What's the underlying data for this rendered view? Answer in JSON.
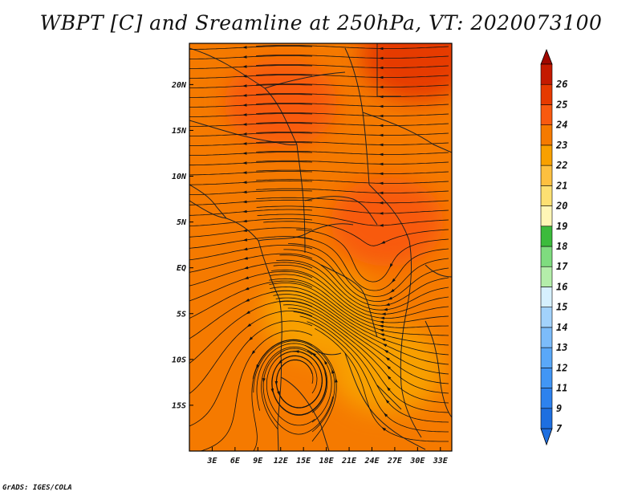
{
  "title": "WBPT [C] and Sreamline at 250hPa, VT: 2020073100",
  "credit": "GrADS: IGES/COLA",
  "map": {
    "lon_range": [
      0,
      34.5
    ],
    "lat_range": [
      -20,
      24.5
    ],
    "lon_ticks": [
      {
        "value": 3,
        "label": "3E"
      },
      {
        "value": 6,
        "label": "6E"
      },
      {
        "value": 9,
        "label": "9E"
      },
      {
        "value": 12,
        "label": "12E"
      },
      {
        "value": 15,
        "label": "15E"
      },
      {
        "value": 18,
        "label": "18E"
      },
      {
        "value": 21,
        "label": "21E"
      },
      {
        "value": 24,
        "label": "24E"
      },
      {
        "value": 27,
        "label": "27E"
      },
      {
        "value": 30,
        "label": "30E"
      },
      {
        "value": 33,
        "label": "33E"
      }
    ],
    "lat_ticks": [
      {
        "value": 20,
        "label": "20N"
      },
      {
        "value": 15,
        "label": "15N"
      },
      {
        "value": 10,
        "label": "10N"
      },
      {
        "value": 5,
        "label": "5N"
      },
      {
        "value": 0,
        "label": "EQ"
      },
      {
        "value": -5,
        "label": "5S"
      },
      {
        "value": -10,
        "label": "10S"
      },
      {
        "value": -15,
        "label": "15S"
      }
    ],
    "fill_regions": [
      {
        "value": 23.5,
        "description": "background"
      },
      {
        "value": 24.5,
        "center": [
          12,
          18
        ]
      },
      {
        "value": 24.5,
        "center": [
          26,
          5
        ]
      },
      {
        "value": 25.5,
        "center": [
          30,
          23
        ]
      },
      {
        "value": 22.5,
        "center": [
          17,
          -5
        ]
      },
      {
        "value": 22.5,
        "center": [
          26,
          -11
        ]
      }
    ]
  },
  "colorbar": {
    "levels": [
      {
        "label": "7",
        "color": "#1e6fe0"
      },
      {
        "label": "9",
        "color": "#2d82ee"
      },
      {
        "label": "11",
        "color": "#4196f5"
      },
      {
        "label": "12",
        "color": "#5aa8f8"
      },
      {
        "label": "13",
        "color": "#7cbcfa"
      },
      {
        "label": "14",
        "color": "#a2d2fc"
      },
      {
        "label": "15",
        "color": "#d6f0fe"
      },
      {
        "label": "16",
        "color": "#b4eeaa"
      },
      {
        "label": "17",
        "color": "#7fdc7f"
      },
      {
        "label": "18",
        "color": "#3cbb3c"
      },
      {
        "label": "19",
        "color": "#fff6b6"
      },
      {
        "label": "20",
        "color": "#fde072"
      },
      {
        "label": "21",
        "color": "#fdc040"
      },
      {
        "label": "22",
        "color": "#f8a000"
      },
      {
        "label": "23",
        "color": "#f57a00"
      },
      {
        "label": "24",
        "color": "#f85a10"
      },
      {
        "label": "25",
        "color": "#e63a00"
      },
      {
        "label": "26",
        "color": "#c41a00"
      }
    ],
    "top_color": "#a00800",
    "bottom_color": "#1e6fe0"
  }
}
